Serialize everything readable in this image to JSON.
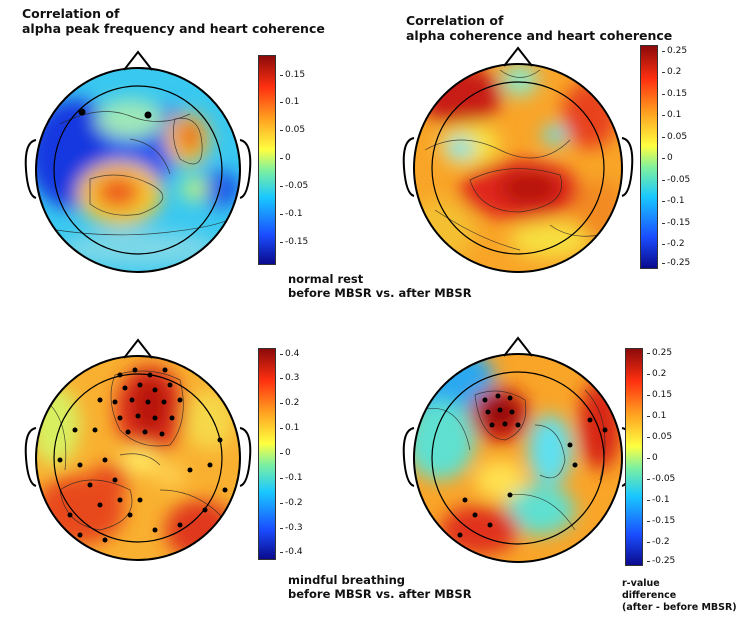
{
  "titles": {
    "top_left": [
      "Correlation of",
      "alpha peak frequency and heart coherence"
    ],
    "top_right": [
      "Correlation of",
      "alpha coherence and heart coherence"
    ]
  },
  "captions": {
    "rest": [
      "normal rest",
      "before MBSR vs. after MBSR"
    ],
    "breathing": [
      "mindful breathing",
      "before MBSR vs. after MBSR"
    ],
    "colorbar_label": [
      "r-value",
      "difference",
      "(after - before MBSR)"
    ]
  },
  "colorbars": {
    "tl": [
      "0.15",
      "0.1",
      "0.05",
      "0",
      "-0.05",
      "-0.1",
      "-0.15"
    ],
    "tr": [
      "0.25",
      "0.2",
      "0.15",
      "0.1",
      "0.05",
      "0",
      "-0.05",
      "-0.1",
      "-0.15",
      "-0.2",
      "-0.25"
    ],
    "bl": [
      "0.4",
      "0.3",
      "0.2",
      "0.1",
      "0",
      "-0.1",
      "-0.2",
      "-0.3",
      "-0.4"
    ],
    "br": [
      "0.25",
      "0.2",
      "0.15",
      "0.1",
      "0.05",
      "0",
      "-0.05",
      "-0.1",
      "-0.15",
      "-0.2",
      "-0.25"
    ]
  }
}
